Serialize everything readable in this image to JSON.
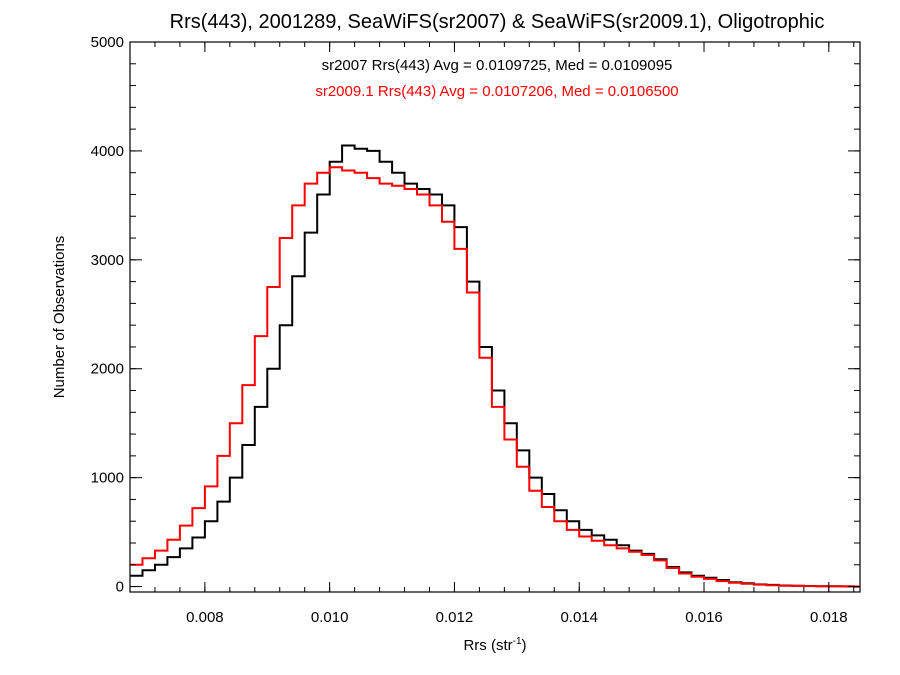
{
  "chart_data": {
    "type": "line",
    "title": "Rrs(443), 2001289, SeaWiFS(sr2007) & SeaWiFS(sr2009.1), Oligotrophic",
    "xlabel_main": "Rrs (str",
    "xlabel_sup": "-1",
    "xlabel_close": ")",
    "ylabel": "Number of Observations",
    "xlim": [
      0.0068,
      0.0185
    ],
    "ylim": [
      -50,
      5000
    ],
    "x_ticks": [
      0.008,
      0.01,
      0.012,
      0.014,
      0.016,
      0.018
    ],
    "x_tick_labels": [
      "0.008",
      "0.010",
      "0.012",
      "0.014",
      "0.016",
      "0.018"
    ],
    "y_ticks": [
      0,
      1000,
      2000,
      3000,
      4000,
      5000
    ],
    "y_tick_labels": [
      "0",
      "1000",
      "2000",
      "3000",
      "4000",
      "5000"
    ],
    "annotations": [
      {
        "text": "sr2007 Rrs(443) Avg = 0.0109725, Med = 0.0109095",
        "color": "#000000"
      },
      {
        "text": "sr2009.1 Rrs(443) Avg = 0.0107206, Med = 0.0106500",
        "color": "#ff0000"
      }
    ],
    "series": [
      {
        "color": "#000000",
        "x": [
          0.0068,
          0.007,
          0.0072,
          0.0074,
          0.0076,
          0.0078,
          0.008,
          0.0082,
          0.0084,
          0.0086,
          0.0088,
          0.009,
          0.0092,
          0.0094,
          0.0096,
          0.0098,
          0.01,
          0.0102,
          0.0104,
          0.0106,
          0.0108,
          0.011,
          0.0112,
          0.0114,
          0.0116,
          0.0118,
          0.012,
          0.0122,
          0.0124,
          0.0126,
          0.0128,
          0.013,
          0.0132,
          0.0134,
          0.0136,
          0.0138,
          0.014,
          0.0142,
          0.0144,
          0.0146,
          0.0148,
          0.015,
          0.0152,
          0.0154,
          0.0156,
          0.0158,
          0.016,
          0.0162,
          0.0164,
          0.0166,
          0.0168,
          0.017,
          0.0172,
          0.0174,
          0.0176,
          0.0178,
          0.018,
          0.0182,
          0.0184,
          0.0185
        ],
        "y": [
          100,
          150,
          200,
          270,
          350,
          450,
          600,
          780,
          1000,
          1300,
          1650,
          2000,
          2400,
          2850,
          3250,
          3600,
          3900,
          4050,
          4020,
          4000,
          3900,
          3800,
          3700,
          3650,
          3600,
          3500,
          3300,
          2800,
          2200,
          1800,
          1500,
          1250,
          1000,
          850,
          700,
          600,
          520,
          470,
          430,
          380,
          330,
          300,
          250,
          180,
          130,
          100,
          80,
          60,
          40,
          30,
          20,
          15,
          10,
          8,
          5,
          3,
          2,
          1,
          0,
          0
        ]
      },
      {
        "color": "#ff0000",
        "x": [
          0.0068,
          0.007,
          0.0072,
          0.0074,
          0.0076,
          0.0078,
          0.008,
          0.0082,
          0.0084,
          0.0086,
          0.0088,
          0.009,
          0.0092,
          0.0094,
          0.0096,
          0.0098,
          0.01,
          0.0102,
          0.0104,
          0.0106,
          0.0108,
          0.011,
          0.0112,
          0.0114,
          0.0116,
          0.0118,
          0.012,
          0.0122,
          0.0124,
          0.0126,
          0.0128,
          0.013,
          0.0132,
          0.0134,
          0.0136,
          0.0138,
          0.014,
          0.0142,
          0.0144,
          0.0146,
          0.0148,
          0.015,
          0.0152,
          0.0154,
          0.0156,
          0.0158,
          0.016,
          0.0162,
          0.0164,
          0.0166,
          0.0168,
          0.017,
          0.0172,
          0.0174,
          0.0176,
          0.0178,
          0.018,
          0.0182,
          0.0184,
          0.0185
        ],
        "y": [
          200,
          260,
          330,
          430,
          560,
          720,
          920,
          1200,
          1500,
          1850,
          2300,
          2750,
          3200,
          3500,
          3700,
          3800,
          3850,
          3820,
          3800,
          3750,
          3700,
          3680,
          3650,
          3600,
          3500,
          3350,
          3100,
          2700,
          2100,
          1650,
          1350,
          1100,
          880,
          730,
          600,
          520,
          460,
          420,
          380,
          350,
          320,
          290,
          240,
          170,
          120,
          90,
          70,
          50,
          35,
          25,
          18,
          12,
          8,
          6,
          4,
          3,
          2,
          1,
          0,
          0
        ]
      }
    ]
  }
}
